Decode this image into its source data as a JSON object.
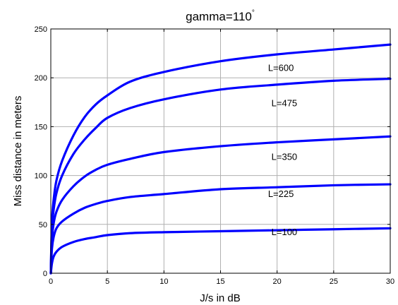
{
  "chart_data": {
    "type": "line",
    "title": "gamma=110",
    "title_superscript": "°",
    "xlabel": "J/s in dB",
    "ylabel": "Miss distance in meters",
    "xlim": [
      0,
      30
    ],
    "ylim": [
      0,
      250
    ],
    "xticks": [
      "0",
      "5",
      "10",
      "15",
      "20",
      "25",
      "30"
    ],
    "yticks": [
      "0",
      "50",
      "100",
      "150",
      "200",
      "250"
    ],
    "grid": true,
    "line_color": "#0000ff",
    "series": [
      {
        "name": "L=600",
        "x": [
          0,
          0.1,
          0.25,
          0.5,
          1,
          2,
          3,
          4,
          5,
          7,
          10,
          15,
          20,
          25,
          30
        ],
        "values": [
          0,
          52,
          75,
          95,
          115,
          141,
          160,
          173,
          182,
          196,
          206,
          217,
          224,
          229,
          234
        ]
      },
      {
        "name": "L=475",
        "x": [
          0,
          0.1,
          0.25,
          0.5,
          1,
          2,
          3,
          4,
          5,
          7,
          10,
          15,
          20,
          25,
          30
        ],
        "values": [
          0,
          45,
          65,
          82,
          100,
          122,
          137,
          149,
          159,
          169,
          178,
          188,
          193,
          197,
          199
        ]
      },
      {
        "name": "L=350",
        "x": [
          0,
          0.1,
          0.25,
          0.5,
          1,
          2,
          3,
          4,
          5,
          7,
          10,
          15,
          20,
          25,
          30
        ],
        "values": [
          0,
          35,
          51,
          63,
          75,
          89,
          99,
          106,
          111,
          117,
          124,
          130,
          134,
          137,
          140
        ]
      },
      {
        "name": "L=225",
        "x": [
          0,
          0.1,
          0.25,
          0.5,
          1,
          2,
          3,
          4,
          5,
          7,
          10,
          15,
          20,
          25,
          30
        ],
        "values": [
          0,
          25,
          37,
          46,
          53,
          61,
          67,
          71,
          74,
          78,
          81,
          86,
          88,
          90,
          91
        ]
      },
      {
        "name": "L=100",
        "x": [
          0,
          0.1,
          0.25,
          0.5,
          1,
          2,
          3,
          4,
          5,
          7,
          10,
          15,
          20,
          25,
          30
        ],
        "values": [
          0,
          10,
          17,
          22,
          27,
          32,
          35,
          37,
          39,
          41,
          42,
          43,
          44,
          45,
          46
        ]
      }
    ],
    "curve_labels": [
      {
        "text": "L=600",
        "x": 19.2,
        "y": 207
      },
      {
        "text": "L=475",
        "x": 19.5,
        "y": 171
      },
      {
        "text": "L=350",
        "x": 19.5,
        "y": 116
      },
      {
        "text": "L=225",
        "x": 19.2,
        "y": 78
      },
      {
        "text": "L=100",
        "x": 19.5,
        "y": 39
      }
    ]
  }
}
